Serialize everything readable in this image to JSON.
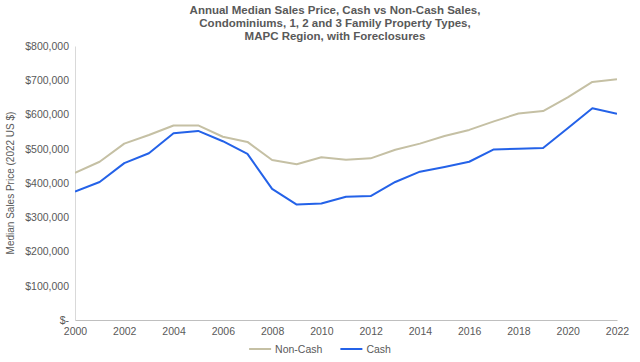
{
  "chart_data": {
    "type": "line",
    "title": "Annual Median Sales Price, Cash vs Non-Cash Sales,\nCondominiums, 1, 2 and 3 Family Property Types,\nMAPC Region, with Foreclosures",
    "y_label": "Median Sales Price (2022 US $)",
    "x": [
      2000,
      2001,
      2002,
      2003,
      2004,
      2005,
      2006,
      2007,
      2008,
      2009,
      2010,
      2011,
      2012,
      2013,
      2014,
      2015,
      2016,
      2017,
      2018,
      2019,
      2020,
      2021,
      2022
    ],
    "series": [
      {
        "name": "Non-Cash",
        "color": "#c5c0a4",
        "values": [
          430000,
          462000,
          515000,
          540000,
          568000,
          568000,
          535000,
          520000,
          467000,
          455000,
          475000,
          468000,
          472000,
          497000,
          515000,
          537000,
          555000,
          580000,
          603000,
          610000,
          650000,
          695000,
          703000
        ]
      },
      {
        "name": "Cash",
        "color": "#2462e8",
        "values": [
          375000,
          403000,
          458000,
          487000,
          545000,
          552000,
          522000,
          485000,
          383000,
          337000,
          340000,
          360000,
          362000,
          403000,
          433000,
          447000,
          462000,
          498000,
          500000,
          502000,
          560000,
          618000,
          602000
        ]
      }
    ],
    "xlim": [
      2000,
      2022
    ],
    "xticks": [
      2000,
      2002,
      2004,
      2006,
      2008,
      2010,
      2012,
      2014,
      2016,
      2018,
      2020,
      2022
    ],
    "ylim": [
      0,
      800000
    ],
    "yticks": [
      {
        "value": 0,
        "label": "$-"
      },
      {
        "value": 100000,
        "label": "$100,000"
      },
      {
        "value": 200000,
        "label": "$200,000"
      },
      {
        "value": 300000,
        "label": "$300,000"
      },
      {
        "value": 400000,
        "label": "$400,000"
      },
      {
        "value": 500000,
        "label": "$500,000"
      },
      {
        "value": 600000,
        "label": "$600,000"
      },
      {
        "value": 700000,
        "label": "$700,000"
      },
      {
        "value": 800000,
        "label": "$800,000"
      }
    ],
    "grid": false,
    "legend": "bottom"
  }
}
